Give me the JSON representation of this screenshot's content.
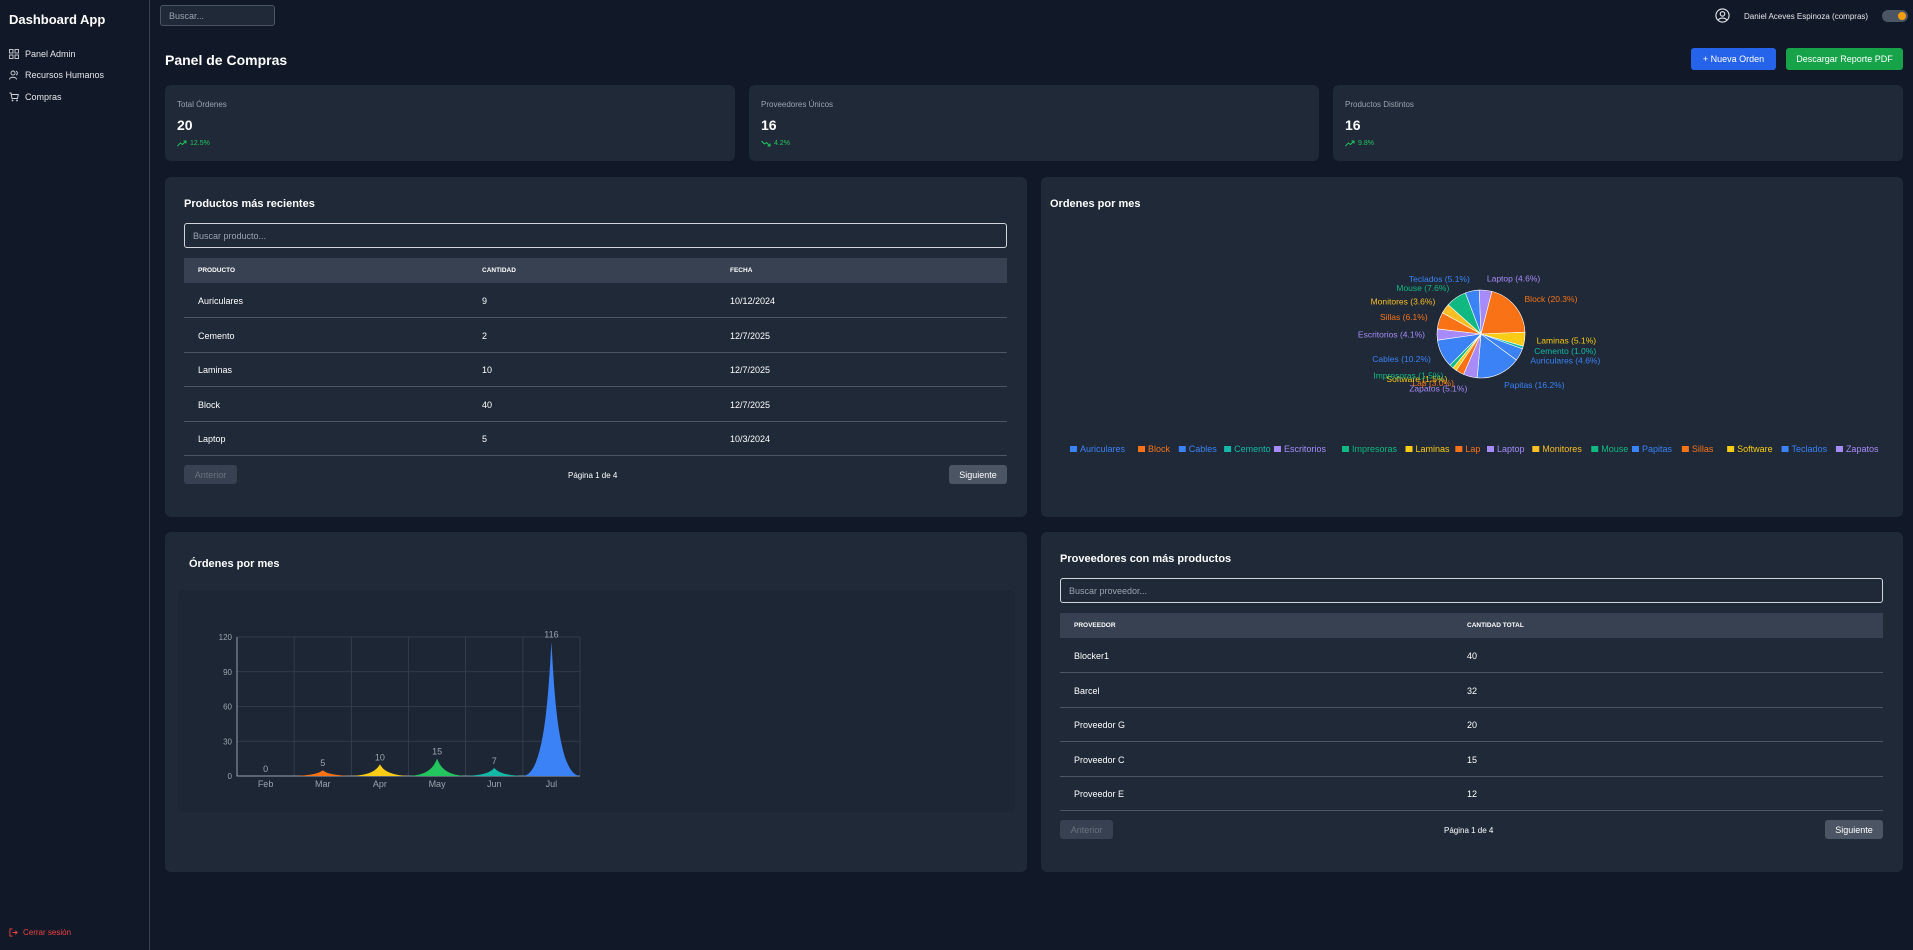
{
  "sidebar": {
    "brand": "Dashboard App",
    "items": [
      {
        "label": "Panel Admin",
        "icon": "grid-icon"
      },
      {
        "label": "Recursos Humanos",
        "icon": "users-icon"
      },
      {
        "label": "Compras",
        "icon": "cart-icon"
      }
    ],
    "logout": "Cerrar sesión"
  },
  "topbar": {
    "search_placeholder": "Buscar...",
    "user_name": "Daniel Aceves Espinoza (compras)"
  },
  "page": {
    "title": "Panel de Compras",
    "new_order_label": "+ Nueva Orden",
    "pdf_label": "Descargar Reporte PDF"
  },
  "stats": [
    {
      "label": "Total Órdenes",
      "value": "20",
      "trend": "12.5%",
      "direction": "up"
    },
    {
      "label": "Proveedores Únicos",
      "value": "16",
      "trend": "4.2%",
      "direction": "down"
    },
    {
      "label": "Productos Distintos",
      "value": "16",
      "trend": "9.8%",
      "direction": "up"
    }
  ],
  "products_table": {
    "title": "Productos más recientes",
    "search_placeholder": "Buscar producto...",
    "headers": [
      "PRODUCTO",
      "CANTIDAD",
      "FECHA"
    ],
    "rows": [
      [
        "Auriculares",
        "9",
        "10/12/2024"
      ],
      [
        "Cemento",
        "2",
        "12/7/2025"
      ],
      [
        "Laminas",
        "10",
        "12/7/2025"
      ],
      [
        "Block",
        "40",
        "12/7/2025"
      ],
      [
        "Laptop",
        "5",
        "10/3/2024"
      ]
    ],
    "prev_label": "Anterior",
    "next_label": "Siguiente",
    "page_info": "Página 1 de 4"
  },
  "suppliers_table": {
    "title": "Proveedores con más productos",
    "search_placeholder": "Buscar proveedor...",
    "headers": [
      "PROVEEDOR",
      "CANTIDAD TOTAL"
    ],
    "rows": [
      [
        "Blocker1",
        "40"
      ],
      [
        "Barcel",
        "32"
      ],
      [
        "Proveedor G",
        "20"
      ],
      [
        "Proveedor C",
        "15"
      ],
      [
        "Proveedor E",
        "12"
      ]
    ],
    "prev_label": "Anterior",
    "next_label": "Siguiente",
    "page_info": "Página 1 de 4"
  },
  "chart_data": [
    {
      "type": "pie",
      "title": "Ordenes por mes",
      "labels": [
        "Auriculares",
        "Block",
        "Cables",
        "Cemento",
        "Escritorios",
        "Impresoras",
        "Laminas",
        "Lap",
        "Laptop",
        "Monitores",
        "Mouse",
        "Papitas",
        "Sillas",
        "Software",
        "Teclados",
        "Zapatos"
      ],
      "values": [
        4.6,
        20.3,
        10.2,
        1.0,
        4.1,
        1.5,
        5.1,
        3.0,
        4.6,
        3.6,
        7.6,
        16.2,
        6.1,
        1.5,
        5.1,
        5.1
      ],
      "slice_labels": [
        "Auriculares (4.6%)",
        "Block (20.3%)",
        "Cables (10.2%)",
        "Cemento (1.0%)",
        "Escritorios (4.1%)",
        "Impresoras (1.5%)",
        "Laminas (5.1%)",
        "Lap (3.0%)",
        "Laptop (4.6%)",
        "Monitores (3.6%)",
        "Mouse (7.6%)",
        "Papitas (16.2%)",
        "Sillas (6.1%)",
        "Software (1.5%)",
        "Teclados (5.1%)",
        "Zapatos (5.1%)"
      ],
      "colors": [
        "#3b82f6",
        "#f97316",
        "#3b82f6",
        "#14b8a6",
        "#a78bfa",
        "#10b981",
        "#facc15",
        "#f97316",
        "#a78bfa",
        "#fbbf24",
        "#10b981",
        "#3b82f6",
        "#f97316",
        "#facc15",
        "#3b82f6",
        "#a78bfa"
      ],
      "legend_position": "bottom"
    },
    {
      "type": "area",
      "title": "Órdenes por mes",
      "categories": [
        "Feb",
        "Mar",
        "Apr",
        "May",
        "Jun",
        "Jul"
      ],
      "values": [
        0,
        5,
        10,
        15,
        7,
        116
      ],
      "colors": [
        "#6b7280",
        "#f97316",
        "#facc15",
        "#22c55e",
        "#14b8a6",
        "#3b82f6"
      ],
      "yticks": [
        0,
        30,
        60,
        90,
        120
      ],
      "ylim": [
        0,
        120
      ],
      "grid": true
    }
  ]
}
